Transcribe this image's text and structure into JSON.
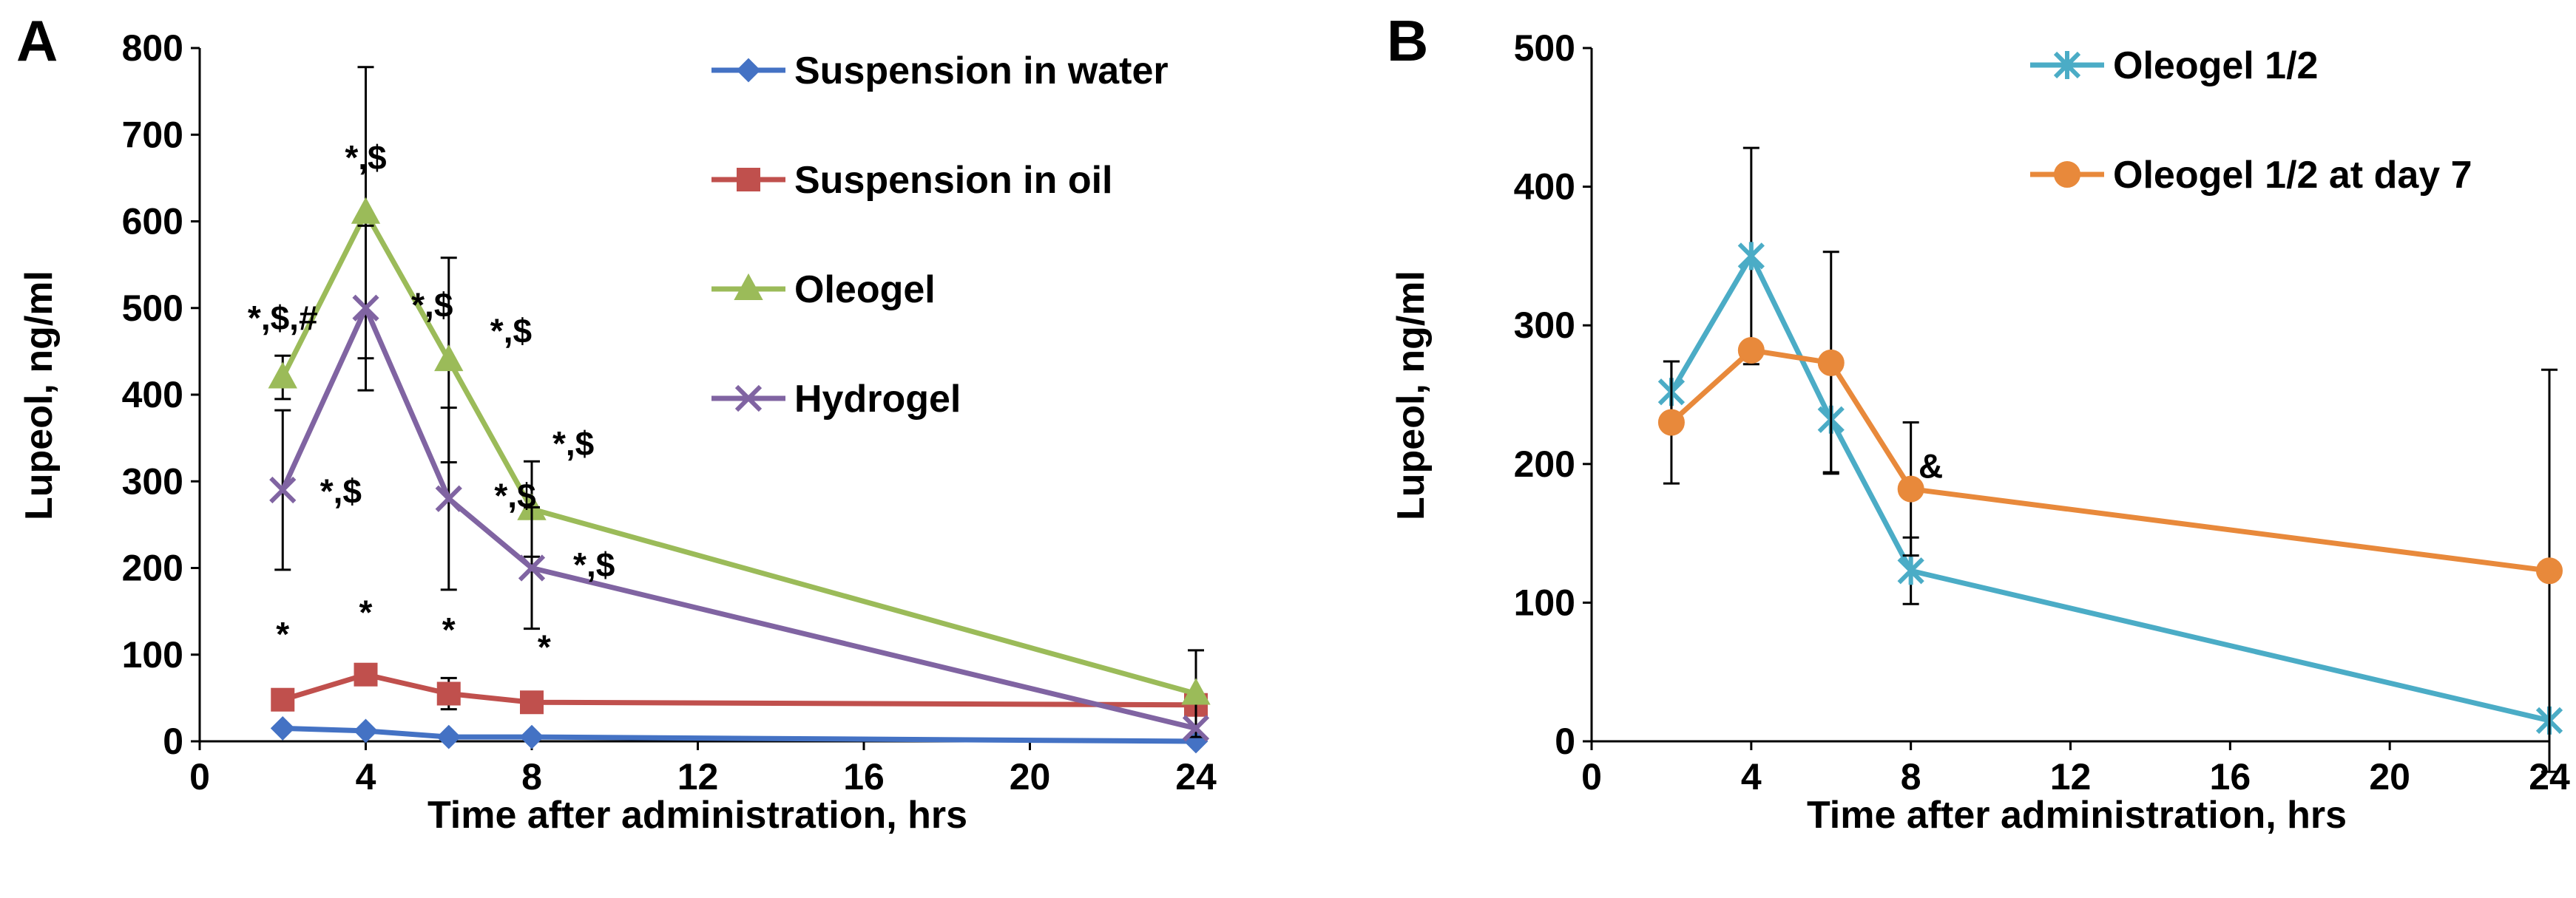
{
  "chart_data": [
    {
      "panel_label": "A",
      "type": "line",
      "title": "",
      "xlabel": "Time after administration, hrs",
      "ylabel": "Lupeol, ng/ml",
      "xlim": [
        0,
        24
      ],
      "ylim": [
        0,
        800
      ],
      "xticks": [
        0,
        4,
        8,
        12,
        16,
        20,
        24
      ],
      "yticks": [
        0,
        100,
        200,
        300,
        400,
        500,
        600,
        700,
        800
      ],
      "x": [
        2,
        4,
        6,
        8,
        24
      ],
      "legend_position": "top-right",
      "series": [
        {
          "name": "Suspension in water",
          "color": "#4472C4",
          "marker": "diamond",
          "values": [
            15,
            12,
            5,
            5,
            0
          ],
          "err": [
            0,
            0,
            0,
            0,
            0
          ]
        },
        {
          "name": "Suspension in oil",
          "color": "#C0504D",
          "marker": "square",
          "values": [
            48,
            77,
            55,
            45,
            42
          ],
          "err": [
            0,
            0,
            18,
            0,
            0
          ]
        },
        {
          "name": "Oleogel",
          "color": "#9BBB59",
          "marker": "triangle",
          "values": [
            420,
            610,
            440,
            268,
            55
          ],
          "err": [
            25,
            168,
            118,
            55,
            50
          ]
        },
        {
          "name": "Hydrogel",
          "color": "#8064A2",
          "marker": "cross",
          "values": [
            290,
            500,
            280,
            200,
            15
          ],
          "err": [
            92,
            95,
            105,
            70,
            0
          ]
        }
      ],
      "annotations": [
        {
          "text": "*,$,#",
          "x": 2,
          "y": 475
        },
        {
          "text": "*,$",
          "x": 4,
          "y": 660
        },
        {
          "text": "*,$",
          "x": 5.6,
          "y": 490
        },
        {
          "text": "*,$",
          "x": 7.5,
          "y": 460
        },
        {
          "text": "*,$",
          "x": 9,
          "y": 330
        },
        {
          "text": "*,$",
          "x": 3.4,
          "y": 275
        },
        {
          "text": "*,$",
          "x": 7.6,
          "y": 270
        },
        {
          "text": "*,$",
          "x": 9.5,
          "y": 190
        },
        {
          "text": "*",
          "x": 2,
          "y": 110
        },
        {
          "text": "*",
          "x": 4,
          "y": 135
        },
        {
          "text": "*",
          "x": 6,
          "y": 115
        },
        {
          "text": "*",
          "x": 8.3,
          "y": 95
        }
      ]
    },
    {
      "panel_label": "B",
      "type": "line",
      "title": "",
      "xlabel": "Time after administration, hrs",
      "ylabel": "Lupeol, ng/ml",
      "xlim": [
        0,
        24
      ],
      "ylim": [
        0,
        500
      ],
      "xticks": [
        0,
        4,
        8,
        12,
        16,
        20,
        24
      ],
      "yticks": [
        0,
        100,
        200,
        300,
        400,
        500
      ],
      "x": [
        2,
        4,
        6,
        8,
        24
      ],
      "legend_position": "top-right",
      "series": [
        {
          "name": "Oleogel 1/2",
          "color": "#4BACC6",
          "marker": "star",
          "values": [
            252,
            350,
            232,
            123,
            15
          ],
          "err": [
            22,
            78,
            38,
            24,
            0
          ]
        },
        {
          "name": "Oleogel 1/2 at day 7",
          "color": "#E8893B",
          "marker": "circle",
          "values": [
            230,
            282,
            273,
            182,
            123
          ],
          "err": [
            44,
            0,
            80,
            48,
            145
          ]
        }
      ],
      "annotations": [
        {
          "text": "&",
          "x": 8.5,
          "y": 190
        }
      ]
    }
  ]
}
